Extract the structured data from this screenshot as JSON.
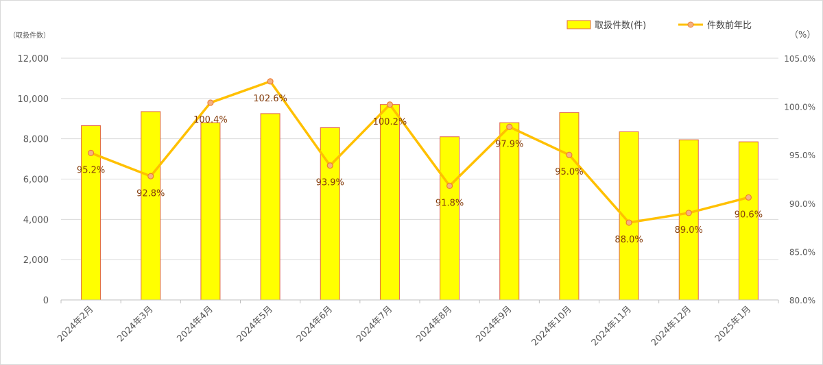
{
  "chart_data": {
    "type": "bar+line",
    "categories": [
      "2024年2月",
      "2024年3月",
      "2024年4月",
      "2024年5月",
      "2024年6月",
      "2024年7月",
      "2024年8月",
      "2024年9月",
      "2024年10月",
      "2024年11月",
      "2024年12月",
      "2025年1月"
    ],
    "series": [
      {
        "name": "取扱件数(件)",
        "type": "bar",
        "axis": "left",
        "values": [
          8650,
          9350,
          8800,
          9250,
          8550,
          9700,
          8100,
          8800,
          9300,
          8350,
          7950,
          7850
        ],
        "fill": "#ffff00",
        "stroke": "#e0664a"
      },
      {
        "name": "件数前年比",
        "type": "line",
        "axis": "right",
        "values": [
          95.2,
          92.8,
          100.4,
          102.6,
          93.9,
          100.2,
          91.8,
          97.9,
          95.0,
          88.0,
          89.0,
          90.6
        ],
        "data_labels": [
          "95.2%",
          "92.8%",
          "100.4%",
          "102.6%",
          "93.9%",
          "100.2%",
          "91.8%",
          "97.9%",
          "95.0%",
          "88.0%",
          "89.0%",
          "90.6%"
        ],
        "color": "#ffc000",
        "marker_fill": "#f4b183",
        "marker_stroke": "#ed7d31"
      }
    ],
    "left_axis": {
      "unit_label": "（取扱件数）",
      "ylim": [
        0,
        12000
      ],
      "tick_labels": [
        "0",
        "2,000",
        "4,000",
        "6,000",
        "8,000",
        "10,000",
        "12,000"
      ],
      "tick_values": [
        0,
        2000,
        4000,
        6000,
        8000,
        10000,
        12000
      ]
    },
    "right_axis": {
      "unit_label": "（%）",
      "ylim": [
        80,
        105
      ],
      "tick_labels": [
        "80.0%",
        "85.0%",
        "90.0%",
        "95.0%",
        "100.0%",
        "105.0%"
      ],
      "tick_values": [
        80,
        85,
        90,
        95,
        100,
        105
      ]
    },
    "grid": true,
    "legend_position": "top-right",
    "label_color": "#843c0c",
    "axis_text_color": "#595959",
    "grid_color": "#d9d9d9"
  }
}
